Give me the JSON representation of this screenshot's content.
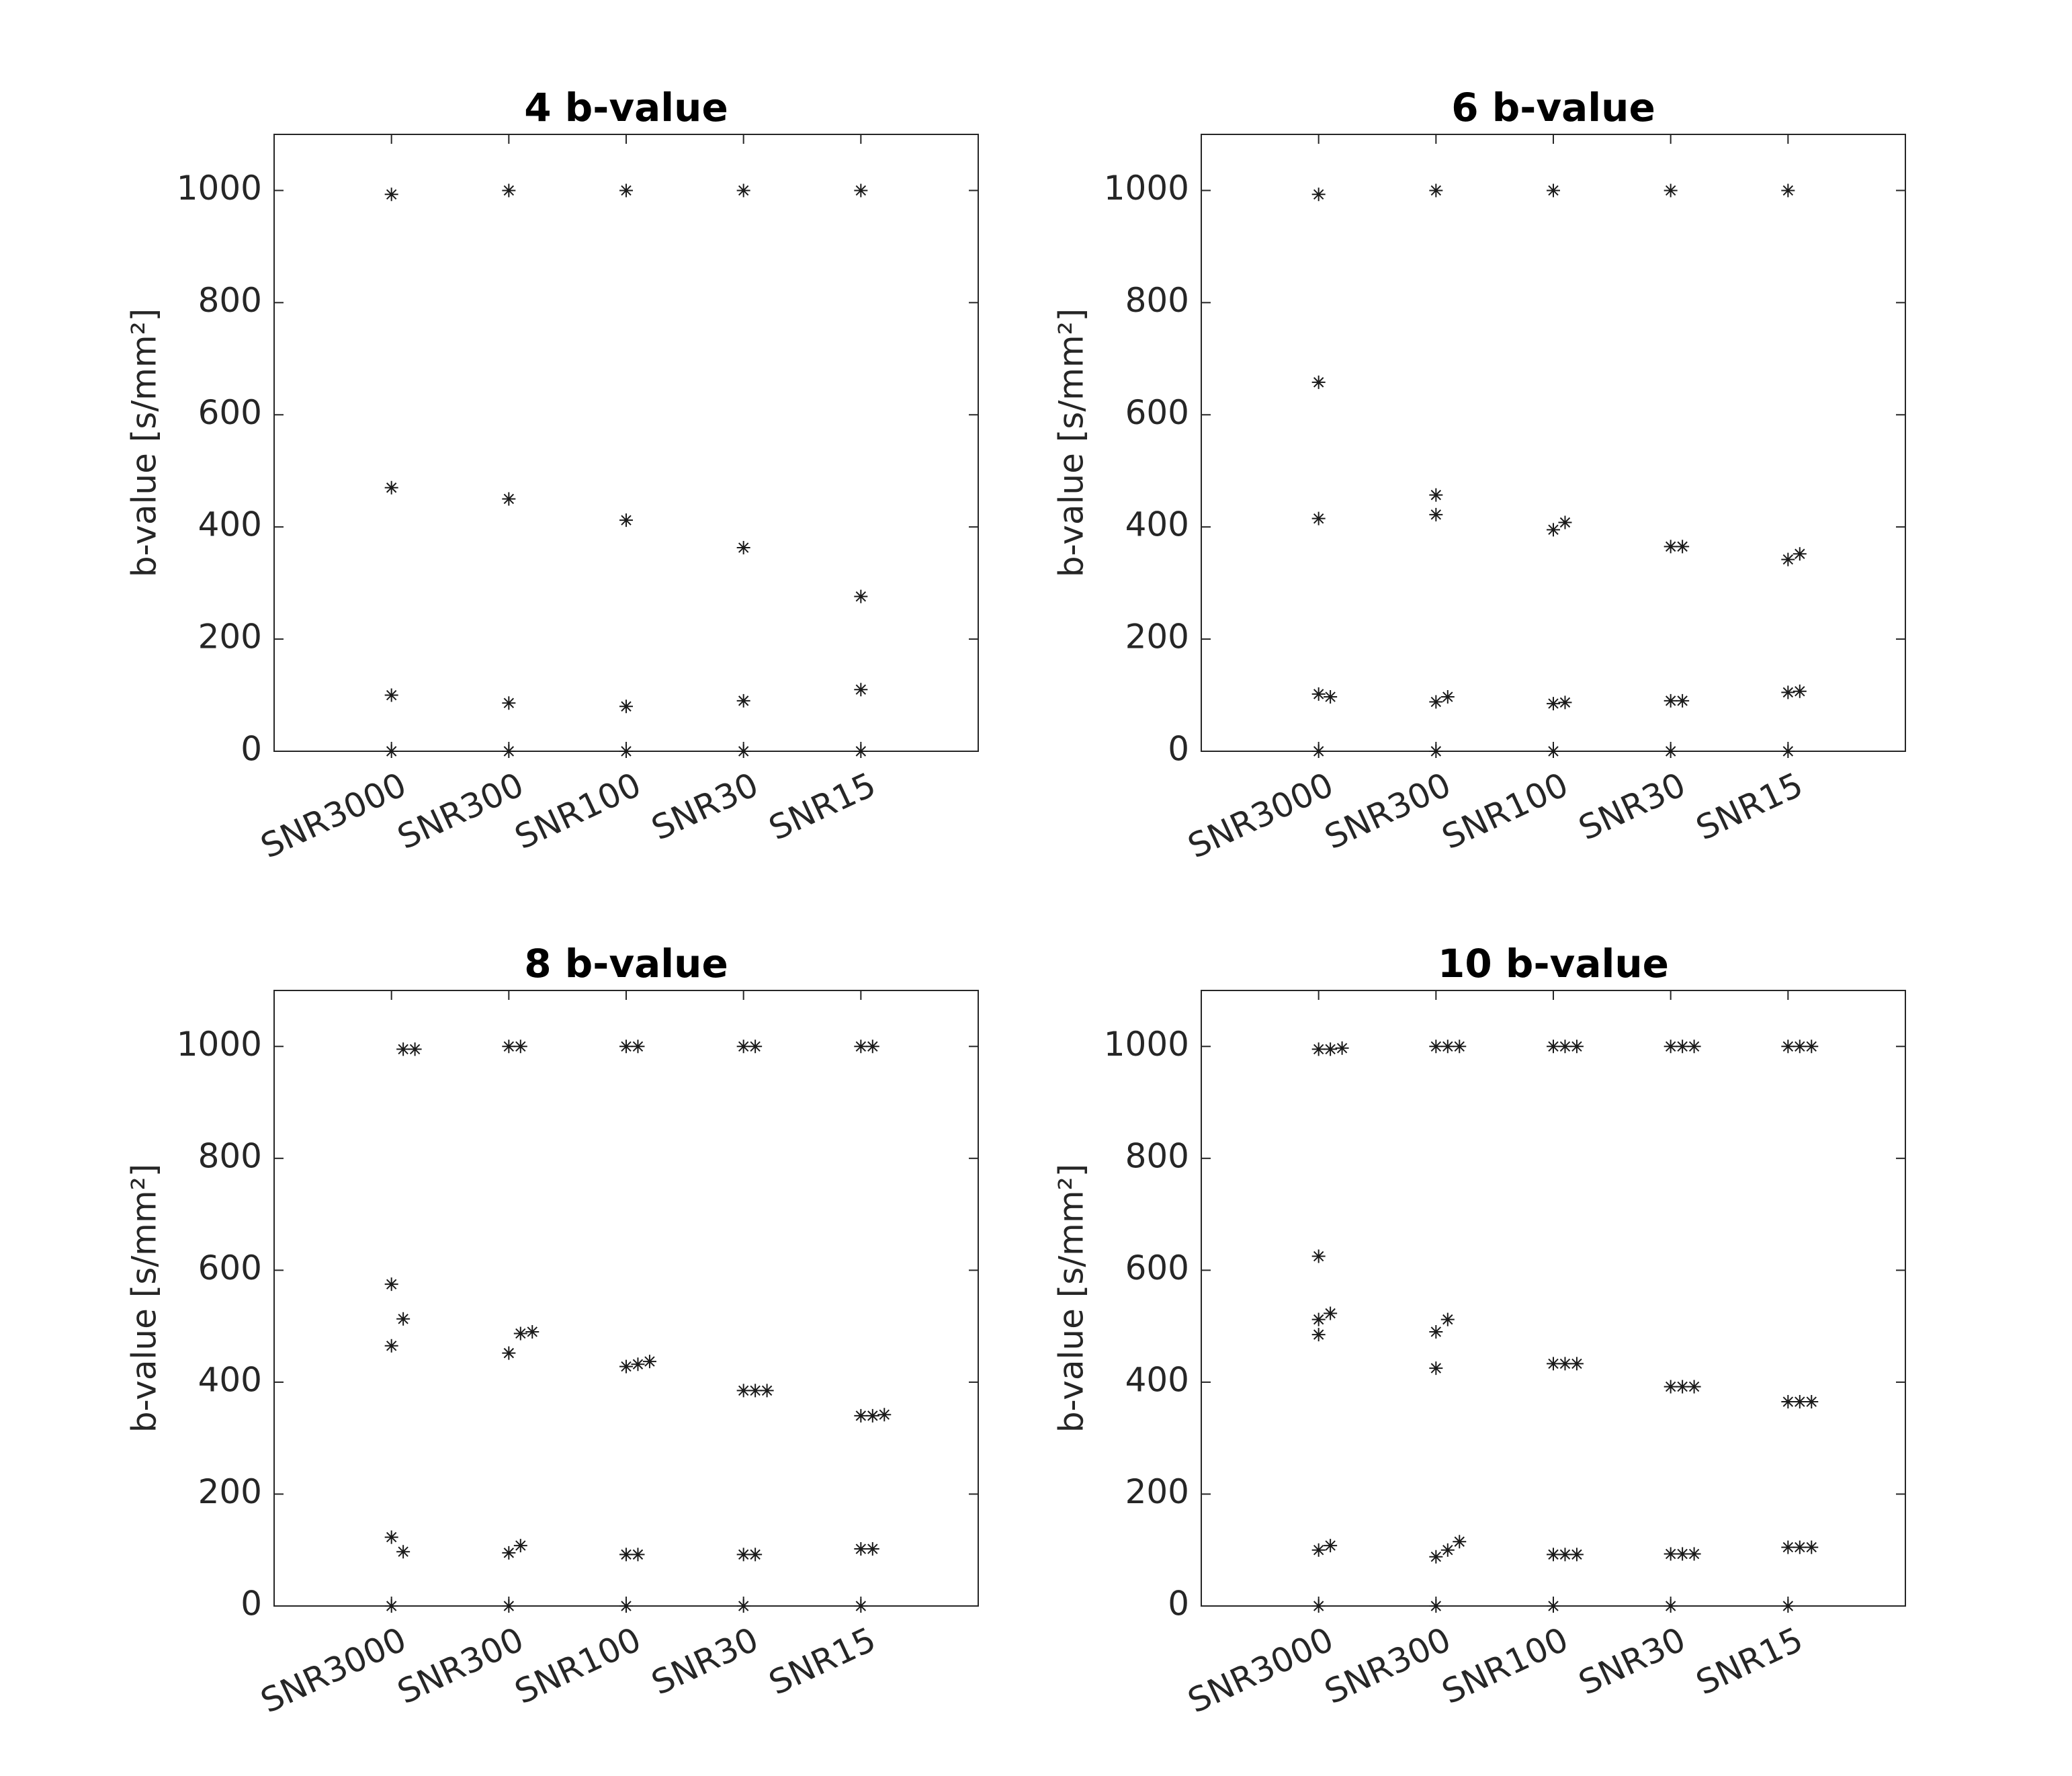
{
  "chart_data": [
    {
      "type": "scatter",
      "title": "4 b-value",
      "ylabel": "b-value [s/mm²]",
      "color": "#1a1a1a",
      "xlim": [
        0,
        6
      ],
      "ylim": [
        0,
        1100
      ],
      "yticks": [
        0,
        200,
        400,
        600,
        800,
        1000
      ],
      "xticks": [
        {
          "value": 1,
          "label": "SNR3000"
        },
        {
          "value": 2,
          "label": "SNR300"
        },
        {
          "value": 3,
          "label": "SNR100"
        },
        {
          "value": 4,
          "label": "SNR30"
        },
        {
          "value": 5,
          "label": "SNR15"
        }
      ],
      "x": [
        1,
        1,
        1,
        1,
        2,
        2,
        2,
        2,
        3,
        3,
        3,
        3,
        4,
        4,
        4,
        4,
        5,
        5,
        5,
        5
      ],
      "y": [
        0,
        100,
        470,
        993,
        0,
        86,
        450,
        1000,
        0,
        80,
        412,
        1000,
        0,
        90,
        363,
        1000,
        0,
        110,
        276,
        1000
      ]
    },
    {
      "type": "scatter",
      "title": "6 b-value",
      "ylabel": "b-value [s/mm²]",
      "color": "#1a1a1a",
      "xlim": [
        0,
        6
      ],
      "ylim": [
        0,
        1100
      ],
      "yticks": [
        0,
        200,
        400,
        600,
        800,
        1000
      ],
      "xticks": [
        {
          "value": 1,
          "label": "SNR3000"
        },
        {
          "value": 2,
          "label": "SNR300"
        },
        {
          "value": 3,
          "label": "SNR100"
        },
        {
          "value": 4,
          "label": "SNR30"
        },
        {
          "value": 5,
          "label": "SNR15"
        }
      ],
      "x": [
        1,
        1,
        1,
        1,
        1,
        1.1,
        2,
        2,
        2,
        2,
        2,
        2.1,
        3,
        3,
        3,
        3,
        3.1,
        3.1,
        4,
        4,
        4,
        4,
        4.1,
        4.1,
        5,
        5,
        5,
        5,
        5.1,
        5.1
      ],
      "y": [
        0,
        102,
        415,
        658,
        993,
        97,
        0,
        88,
        422,
        457,
        1000,
        97,
        0,
        85,
        395,
        1000,
        87,
        408,
        0,
        90,
        365,
        1000,
        90,
        365,
        0,
        105,
        342,
        1000,
        107,
        352
      ]
    },
    {
      "type": "scatter",
      "title": "8 b-value",
      "ylabel": "b-value [s/mm²]",
      "color": "#1a1a1a",
      "xlim": [
        0,
        6
      ],
      "ylim": [
        0,
        1100
      ],
      "yticks": [
        0,
        200,
        400,
        600,
        800,
        1000
      ],
      "xticks": [
        {
          "value": 1,
          "label": "SNR3000"
        },
        {
          "value": 2,
          "label": "SNR300"
        },
        {
          "value": 3,
          "label": "SNR100"
        },
        {
          "value": 4,
          "label": "SNR30"
        },
        {
          "value": 5,
          "label": "SNR15"
        }
      ],
      "x": [
        1,
        1,
        1,
        1,
        1.1,
        1.1,
        1.1,
        1.2,
        2,
        2,
        2,
        2,
        2.1,
        2.1,
        2.1,
        2.2,
        3,
        3,
        3,
        3,
        3.1,
        3.1,
        3.1,
        3.2,
        4,
        4,
        4,
        4,
        4.1,
        4.1,
        4.1,
        4.2,
        5,
        5,
        5,
        5,
        5.1,
        5.1,
        5.1,
        5.2
      ],
      "y": [
        0,
        123,
        465,
        575,
        97,
        513,
        995,
        995,
        0,
        95,
        452,
        1000,
        108,
        487,
        1000,
        490,
        0,
        92,
        428,
        1000,
        92,
        432,
        1000,
        437,
        0,
        92,
        385,
        1000,
        92,
        385,
        1000,
        385,
        0,
        102,
        340,
        1000,
        102,
        340,
        1000,
        342
      ]
    },
    {
      "type": "scatter",
      "title": "10 b-value",
      "ylabel": "b-value [s/mm²]",
      "color": "#1a1a1a",
      "xlim": [
        0,
        6
      ],
      "ylim": [
        0,
        1100
      ],
      "yticks": [
        0,
        200,
        400,
        600,
        800,
        1000
      ],
      "xticks": [
        {
          "value": 1,
          "label": "SNR3000"
        },
        {
          "value": 2,
          "label": "SNR300"
        },
        {
          "value": 3,
          "label": "SNR100"
        },
        {
          "value": 4,
          "label": "SNR30"
        },
        {
          "value": 5,
          "label": "SNR15"
        }
      ],
      "x": [
        1,
        1,
        1,
        1,
        1,
        1,
        1.1,
        1.1,
        1.1,
        1.2,
        2,
        2,
        2,
        2,
        2,
        2.1,
        2.1,
        2.1,
        2.2,
        2.2,
        3,
        3,
        3,
        3,
        3.1,
        3.1,
        3.1,
        3.2,
        3.2,
        3.2,
        4,
        4,
        4,
        4,
        4.1,
        4.1,
        4.1,
        4.2,
        4.2,
        4.2,
        5,
        5,
        5,
        5,
        5.1,
        5.1,
        5.1,
        5.2,
        5.2,
        5.2
      ],
      "y": [
        0,
        100,
        485,
        512,
        625,
        995,
        108,
        523,
        995,
        997,
        0,
        88,
        425,
        490,
        1000,
        100,
        512,
        1000,
        115,
        1000,
        0,
        92,
        433,
        1000,
        92,
        433,
        1000,
        92,
        433,
        1000,
        0,
        93,
        392,
        1000,
        93,
        392,
        1000,
        93,
        392,
        1000,
        0,
        105,
        365,
        1000,
        105,
        365,
        1000,
        105,
        365,
        1000
      ]
    }
  ]
}
